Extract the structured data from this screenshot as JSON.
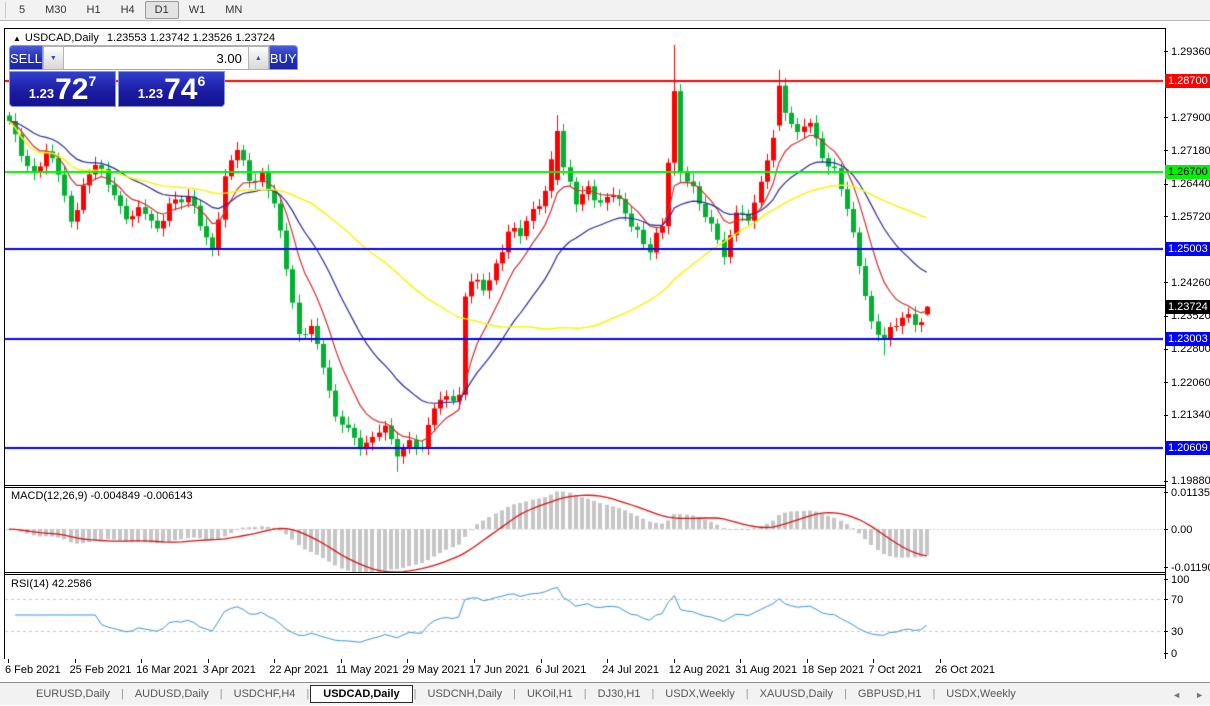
{
  "toolbar": {
    "timeframes": [
      "5",
      "M30",
      "H1",
      "H4",
      "D1",
      "W1",
      "MN"
    ],
    "active": "D1"
  },
  "chart_window": {
    "collapse_icon": "▲",
    "symbol": "USDCAD,Daily",
    "ohlc": "1.23553 1.23742 1.23526 1.23724"
  },
  "trade_panel": {
    "sell_label": "SELL",
    "buy_label": "BUY",
    "volume": "3.00",
    "sell_price": {
      "prefix": "1.23",
      "big": "72",
      "pip": "7",
      "full": "1.23727"
    },
    "buy_price": {
      "prefix": "1.23",
      "big": "74",
      "pip": "6",
      "full": "1.23746"
    }
  },
  "indicators": {
    "macd": {
      "label": "MACD(12,26,9) -0.004849 -0.006143",
      "main": -0.004849,
      "signal": -0.006143,
      "scale": [
        {
          "label": "0.01135",
          "value": 0.01135
        },
        {
          "label": "0.00",
          "value": 0
        },
        {
          "label": "-0.011904",
          "value": -0.011904
        }
      ]
    },
    "rsi": {
      "label": "RSI(14) 42.2586",
      "value": 42.2586,
      "scale": [
        {
          "label": "100",
          "value": 100
        },
        {
          "label": "70",
          "value": 70
        },
        {
          "label": "30",
          "value": 30
        },
        {
          "label": "0",
          "value": 0
        }
      ],
      "levels": [
        70,
        30
      ]
    }
  },
  "price_axis": {
    "ticks": [
      "1.29360",
      "1.27900",
      "1.27180",
      "1.26440",
      "1.25720",
      "1.24260",
      "1.23520",
      "1.22800",
      "1.22060",
      "1.21340",
      "1.19880"
    ],
    "markers": [
      {
        "label": "1.28700",
        "bg": "#FF0000",
        "fg": "#FFFFFF"
      },
      {
        "label": "1.26700",
        "bg": "#00F300",
        "fg": "#000000"
      },
      {
        "label": "1.25003",
        "bg": "#0000FF",
        "fg": "#FFFFFF"
      },
      {
        "label": "1.23724",
        "bg": "#000000",
        "fg": "#FFFFFF"
      },
      {
        "label": "1.23003",
        "bg": "#0000FF",
        "fg": "#FFFFFF"
      },
      {
        "label": "1.20609",
        "bg": "#0000FF",
        "fg": "#FFFFFF"
      }
    ]
  },
  "x_axis": {
    "labels": [
      "6 Feb 2021",
      "25 Feb 2021",
      "16 Mar 2021",
      "3 Apr 2021",
      "22 Apr 2021",
      "11 May 2021",
      "29 May 2021",
      "17 Jun 2021",
      "6 Jul 2021",
      "24 Jul 2021",
      "12 Aug 2021",
      "31 Aug 2021",
      "18 Sep 2021",
      "7 Oct 2021",
      "26 Oct 2021"
    ]
  },
  "tabs": {
    "items": [
      {
        "label": "EURUSD,Daily"
      },
      {
        "label": "AUDUSD,Daily"
      },
      {
        "label": "USDCHF,H4"
      },
      {
        "label": "USDCAD,Daily"
      },
      {
        "label": "USDCNH,Daily"
      },
      {
        "label": "UKOil,H1"
      },
      {
        "label": "DJ30,H1"
      },
      {
        "label": "USDX,Weekly"
      },
      {
        "label": "XAUUSD,Daily"
      },
      {
        "label": "GBPUSD,H1"
      },
      {
        "label": "USDX,Weekly"
      }
    ],
    "active_index": 3,
    "nav_left": "◄",
    "nav_right": "►"
  },
  "chart_data": {
    "type": "candlestick",
    "symbol": "USDCAD",
    "timeframe": "Daily",
    "candle_count": 150,
    "price_range": {
      "top": 1.2985,
      "bottom": 1.1979
    },
    "bid": 1.23727,
    "ask": 1.23746,
    "last_candle": {
      "o": 1.23553,
      "h": 1.23742,
      "l": 1.23526,
      "c": 1.23724
    },
    "close_anchors": [
      [
        0,
        1.2782
      ],
      [
        2,
        1.2705
      ],
      [
        4,
        1.2668
      ],
      [
        6,
        1.2715
      ],
      [
        8,
        1.2664
      ],
      [
        10,
        1.256
      ],
      [
        12,
        1.264
      ],
      [
        14,
        1.2685
      ],
      [
        17,
        1.2618
      ],
      [
        19,
        1.2565
      ],
      [
        21,
        1.2592
      ],
      [
        24,
        1.2545
      ],
      [
        26,
        1.26
      ],
      [
        29,
        1.2615
      ],
      [
        31,
        1.255
      ],
      [
        33,
        1.2498
      ],
      [
        35,
        1.266
      ],
      [
        37,
        1.2718
      ],
      [
        39,
        1.265
      ],
      [
        41,
        1.2668
      ],
      [
        43,
        1.26
      ],
      [
        45,
        1.2455
      ],
      [
        47,
        1.2312
      ],
      [
        49,
        1.233
      ],
      [
        51,
        1.2238
      ],
      [
        53,
        1.213
      ],
      [
        55,
        1.2105
      ],
      [
        57,
        1.2058
      ],
      [
        59,
        1.2085
      ],
      [
        61,
        1.211
      ],
      [
        63,
        1.2042
      ],
      [
        65,
        1.2078
      ],
      [
        67,
        1.2062
      ],
      [
        69,
        1.2148
      ],
      [
        71,
        1.2175
      ],
      [
        73,
        1.2178
      ],
      [
        74,
        1.2395
      ],
      [
        75,
        1.2428
      ],
      [
        77,
        1.2408
      ],
      [
        79,
        1.2468
      ],
      [
        81,
        1.2538
      ],
      [
        83,
        1.2528
      ],
      [
        85,
        1.2588
      ],
      [
        87,
        1.2628
      ],
      [
        89,
        1.276
      ],
      [
        90,
        1.268
      ],
      [
        92,
        1.2598
      ],
      [
        94,
        1.2638
      ],
      [
        96,
        1.2602
      ],
      [
        98,
        1.2618
      ],
      [
        100,
        1.2578
      ],
      [
        102,
        1.2542
      ],
      [
        104,
        1.2492
      ],
      [
        106,
        1.255
      ],
      [
        107,
        1.269
      ],
      [
        108,
        1.2848
      ],
      [
        109,
        1.267
      ],
      [
        111,
        1.2638
      ],
      [
        113,
        1.257
      ],
      [
        115,
        1.252
      ],
      [
        116,
        1.2482
      ],
      [
        118,
        1.258
      ],
      [
        120,
        1.2562
      ],
      [
        122,
        1.2648
      ],
      [
        124,
        1.2745
      ],
      [
        125,
        1.286
      ],
      [
        126,
        1.28
      ],
      [
        128,
        1.2758
      ],
      [
        130,
        1.2778
      ],
      [
        132,
        1.27
      ],
      [
        134,
        1.2678
      ],
      [
        136,
        1.2588
      ],
      [
        138,
        1.2462
      ],
      [
        140,
        1.234
      ],
      [
        142,
        1.2302
      ],
      [
        144,
        1.233
      ],
      [
        146,
        1.2356
      ],
      [
        148,
        1.2338
      ],
      [
        149,
        1.23724
      ]
    ],
    "specials": [
      {
        "i": 74,
        "o": 1.2178,
        "c": 1.2395
      },
      {
        "i": 89,
        "o": 1.2652,
        "c": 1.276,
        "h": 1.2795
      },
      {
        "i": 107,
        "o": 1.255,
        "c": 1.269
      },
      {
        "i": 108,
        "o": 1.269,
        "c": 1.2848,
        "h": 1.295,
        "l": 1.2662
      },
      {
        "i": 109,
        "o": 1.2848,
        "c": 1.267,
        "l": 1.2645
      },
      {
        "i": 125,
        "o": 1.2772,
        "c": 1.286,
        "h": 1.2895
      },
      {
        "i": 63,
        "l": 1.2008
      },
      {
        "i": 142,
        "l": 1.2265
      },
      {
        "i": 149,
        "o": 1.23553,
        "c": 1.23724,
        "h": 1.23742,
        "l": 1.23526
      }
    ],
    "hlines": [
      {
        "price": 1.287,
        "color": "#FF0000",
        "width": 2
      },
      {
        "price": 1.267,
        "color": "#00F300",
        "width": 2
      },
      {
        "price": 1.25003,
        "color": "#0000FF",
        "width": 2
      },
      {
        "price": 1.23003,
        "color": "#0000FF",
        "width": 2
      },
      {
        "price": 1.20609,
        "color": "#0000FF",
        "width": 2
      }
    ],
    "moving_averages": [
      {
        "period": 8,
        "method": "ema",
        "color": "#D03030",
        "width": 1.2
      },
      {
        "period": 21,
        "method": "ema",
        "color": "#2A2AA0",
        "width": 1.2
      },
      {
        "period": 50,
        "method": "sma",
        "color": "#F6F600",
        "width": 1.4
      }
    ],
    "colors": {
      "up": "#FF0000",
      "down": "#00B230",
      "macd_hist": "#C6C6C6",
      "macd_signal": "#DD1111",
      "rsi": "#3A96DC",
      "rsi_levels": "#C8C8C8"
    },
    "macd_range": {
      "top": 0.0127,
      "bottom": -0.0133
    },
    "rsi_range": {
      "top_value_y": [
        100,
        0
      ],
      "bottom_value_y": [
        0,
        80
      ]
    }
  }
}
